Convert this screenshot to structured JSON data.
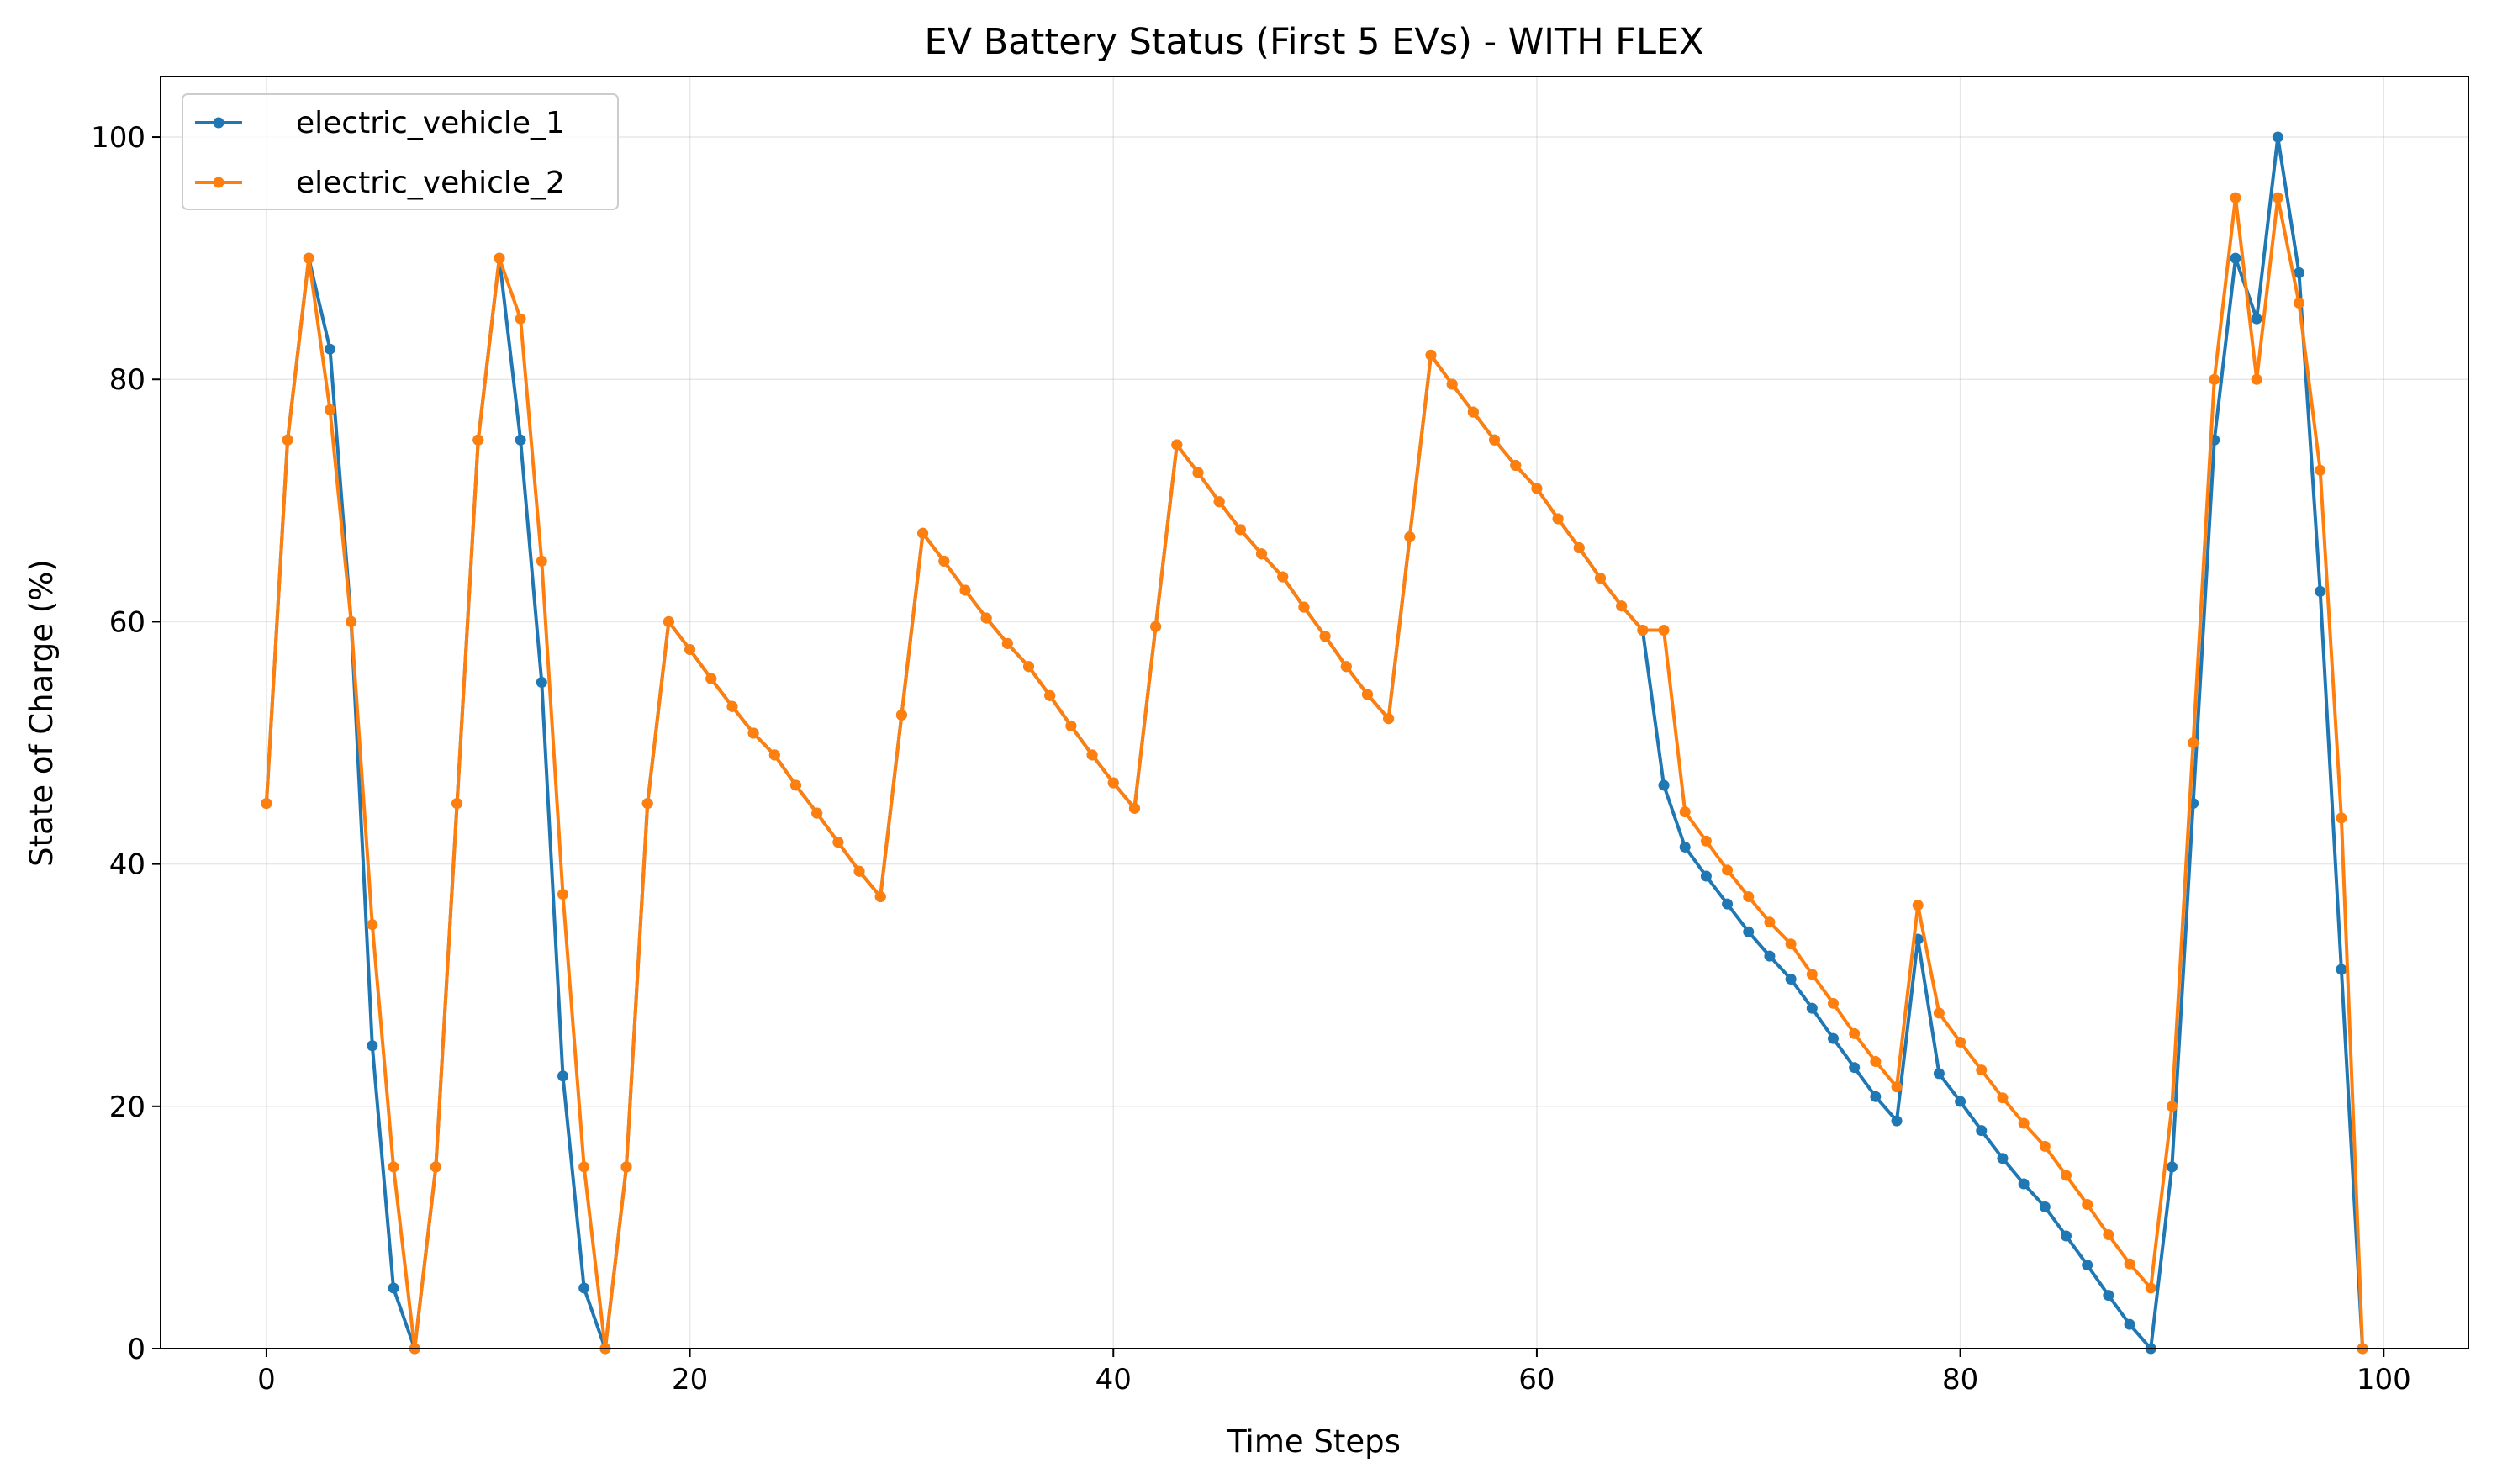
{
  "chart_data": {
    "type": "line",
    "title": "EV Battery Status (First 5 EVs) - WITH FLEX",
    "xlabel": "Time Steps",
    "ylabel": "State of Charge (%)",
    "xlim": [
      -5,
      104
    ],
    "ylim": [
      0,
      105
    ],
    "xticks": [
      0,
      20,
      40,
      60,
      80,
      100
    ],
    "yticks": [
      0,
      20,
      40,
      60,
      80,
      100
    ],
    "grid": true,
    "legend_position": "top-left",
    "series": [
      {
        "name": "electric_vehicle_1",
        "color": "#1f77b4",
        "marker": "circle",
        "x": [
          0,
          1,
          2,
          3,
          4,
          5,
          6,
          7,
          8,
          9,
          10,
          11,
          12,
          13,
          14,
          15,
          16,
          17,
          18,
          19,
          20,
          21,
          22,
          23,
          24,
          25,
          26,
          27,
          28,
          29,
          30,
          31,
          32,
          33,
          34,
          35,
          36,
          37,
          38,
          39,
          40,
          41,
          42,
          43,
          44,
          45,
          46,
          47,
          48,
          49,
          50,
          51,
          52,
          53,
          54,
          55,
          56,
          57,
          58,
          59,
          60,
          61,
          62,
          63,
          64,
          65,
          66,
          67,
          68,
          69,
          70,
          71,
          72,
          73,
          74,
          75,
          76,
          77,
          78,
          79,
          80,
          81,
          82,
          83,
          84,
          85,
          86,
          87,
          88,
          89,
          90,
          91,
          92,
          93,
          94,
          95,
          96,
          97,
          98,
          99
        ],
        "y": [
          45,
          75,
          90,
          82.5,
          60,
          25,
          5,
          0,
          15,
          45,
          75,
          90,
          75,
          55,
          22.5,
          5,
          0,
          15,
          45,
          60,
          57.7,
          55.3,
          53,
          50.8,
          49,
          46.5,
          44.2,
          41.8,
          39.4,
          37.3,
          52.3,
          67.3,
          65,
          62.6,
          60.3,
          58.2,
          56.3,
          53.9,
          51.4,
          49,
          46.7,
          44.6,
          59.6,
          74.6,
          72.3,
          69.9,
          67.6,
          65.6,
          63.7,
          61.2,
          58.8,
          56.3,
          54,
          52,
          67,
          82,
          79.6,
          77.3,
          75,
          72.9,
          71,
          68.5,
          66.1,
          63.6,
          61.3,
          59.3,
          46.5,
          41.4,
          39,
          36.7,
          34.4,
          32.4,
          30.5,
          28.1,
          25.6,
          23.2,
          20.8,
          18.8,
          33.8,
          22.7,
          20.4,
          18,
          15.7,
          13.6,
          11.7,
          9.3,
          6.9,
          4.4,
          2,
          0,
          15,
          45,
          75,
          90,
          85,
          100,
          88.8,
          62.5,
          31.3,
          0
        ]
      },
      {
        "name": "electric_vehicle_2",
        "color": "#ff7f0e",
        "marker": "circle",
        "x": [
          0,
          1,
          2,
          3,
          4,
          5,
          6,
          7,
          8,
          9,
          10,
          11,
          12,
          13,
          14,
          15,
          16,
          17,
          18,
          19,
          20,
          21,
          22,
          23,
          24,
          25,
          26,
          27,
          28,
          29,
          30,
          31,
          32,
          33,
          34,
          35,
          36,
          37,
          38,
          39,
          40,
          41,
          42,
          43,
          44,
          45,
          46,
          47,
          48,
          49,
          50,
          51,
          52,
          53,
          54,
          55,
          56,
          57,
          58,
          59,
          60,
          61,
          62,
          63,
          64,
          65,
          66,
          67,
          68,
          69,
          70,
          71,
          72,
          73,
          74,
          75,
          76,
          77,
          78,
          79,
          80,
          81,
          82,
          83,
          84,
          85,
          86,
          87,
          88,
          89,
          90,
          91,
          92,
          93,
          94,
          95,
          96,
          97,
          98,
          99
        ],
        "y": [
          45,
          75,
          90,
          77.5,
          60,
          35,
          15,
          0,
          15,
          45,
          75,
          90,
          85,
          65,
          37.5,
          15,
          0,
          15,
          45,
          60,
          57.7,
          55.3,
          53,
          50.8,
          49,
          46.5,
          44.2,
          41.8,
          39.4,
          37.3,
          52.3,
          67.3,
          65,
          62.6,
          60.3,
          58.2,
          56.3,
          53.9,
          51.4,
          49,
          46.7,
          44.6,
          59.6,
          74.6,
          72.3,
          69.9,
          67.6,
          65.6,
          63.7,
          61.2,
          58.8,
          56.3,
          54,
          52,
          67,
          82,
          79.6,
          77.3,
          75,
          72.9,
          71,
          68.5,
          66.1,
          63.6,
          61.3,
          59.3,
          59.3,
          44.3,
          41.9,
          39.5,
          37.3,
          35.2,
          33.4,
          30.9,
          28.5,
          26,
          23.7,
          21.6,
          36.6,
          27.7,
          25.3,
          23,
          20.7,
          18.6,
          16.7,
          14.3,
          11.9,
          9.4,
          7,
          5,
          20,
          50,
          80,
          95,
          80,
          95,
          86.3,
          72.5,
          43.8,
          0
        ]
      }
    ]
  }
}
